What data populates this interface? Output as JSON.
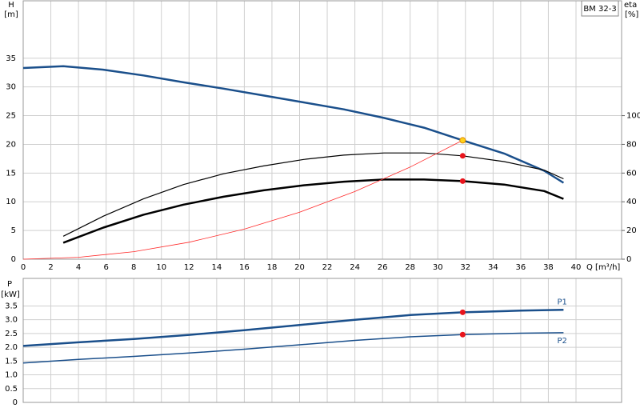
{
  "chart_data": [
    {
      "type": "line",
      "title": "BM 32-3",
      "x_label": "Q [m³/h]",
      "y_label": "H",
      "y_unit": "[m]",
      "y2_label": "eta",
      "y2_unit": "[%]",
      "xlim": [
        0,
        43.3
      ],
      "xticks": [
        0,
        2,
        4,
        6,
        8,
        10,
        12,
        14,
        16,
        18,
        20,
        22,
        24,
        26,
        28,
        30,
        32,
        34,
        36,
        38,
        40
      ],
      "ylim": [
        0,
        45
      ],
      "yticks": [
        0,
        5,
        10,
        15,
        20,
        25,
        30,
        35
      ],
      "y2lim": [
        0,
        180
      ],
      "y2ticks": [
        0,
        20,
        40,
        60,
        80,
        100
      ],
      "grid": true,
      "series": [
        {
          "color": "#1a4f8b",
          "line_width": 2.5,
          "x": [
            0,
            2.9,
            5.8,
            8.7,
            11.6,
            14.5,
            17.4,
            20.3,
            23.2,
            26.1,
            29,
            31.8,
            34.8,
            37.7,
            39.1
          ],
          "values": [
            33.3,
            33.6,
            33.0,
            32.0,
            30.8,
            29.7,
            28.5,
            27.3,
            26.1,
            24.6,
            22.9,
            20.7,
            18.4,
            15.4,
            13.3
          ]
        },
        {
          "color": "#000000",
          "line_width": 1.2,
          "axis": "y2",
          "x": [
            2.9,
            5.8,
            8.7,
            11.6,
            14.5,
            17.4,
            20.3,
            23.2,
            26.1,
            29,
            31.8,
            34.8,
            37.7,
            39.1
          ],
          "values": [
            16,
            30,
            42,
            52,
            59.5,
            65,
            69.5,
            72.5,
            74,
            74,
            72,
            68,
            62,
            56
          ]
        },
        {
          "color": "#000000",
          "line_width": 2.5,
          "axis": "y2",
          "x": [
            2.9,
            5.8,
            8.7,
            11.6,
            14.5,
            17.4,
            20.3,
            23.2,
            26.1,
            29,
            31.8,
            34.8,
            37.7,
            39.1
          ],
          "values": [
            11.5,
            22,
            31,
            38,
            43.5,
            48,
            51.5,
            54,
            55.5,
            55.5,
            54.4,
            52,
            47.5,
            42
          ]
        },
        {
          "color": "#ff2a2a",
          "line_width": 0.8,
          "x": [
            0,
            4,
            8,
            12,
            16,
            20,
            24,
            28,
            31.8
          ],
          "values": [
            0,
            0.33,
            1.31,
            2.95,
            5.24,
            8.19,
            11.79,
            16.05,
            20.7
          ]
        }
      ],
      "points": [
        {
          "x": 31.8,
          "y": 20.7,
          "color": "#ffd21a"
        },
        {
          "x": 31.8,
          "y": 72,
          "axis": "y2",
          "color": "#e8141c"
        },
        {
          "x": 31.8,
          "y": 54.4,
          "axis": "y2",
          "color": "#e8141c"
        }
      ]
    },
    {
      "type": "line",
      "y_label": "P",
      "y_unit": "[kW]",
      "ylim": [
        0,
        4.5
      ],
      "yticks": [
        0,
        0.5,
        {
          "value": 1,
          "label": "1.0"
        },
        1.5,
        {
          "value": 2,
          "label": "2.0"
        },
        2.5,
        {
          "value": 3,
          "label": "3.0"
        },
        3.5
      ],
      "grid": true,
      "series": [
        {
          "name": "P1",
          "color": "#1a4f8b",
          "line_width": 2.5,
          "x": [
            0,
            4,
            8,
            12,
            16,
            20,
            24,
            28,
            31.8,
            36,
            39.1
          ],
          "values": [
            2.05,
            2.18,
            2.3,
            2.45,
            2.62,
            2.81,
            3.0,
            3.17,
            3.27,
            3.33,
            3.36
          ]
        },
        {
          "name": "P2",
          "color": "#1a4f8b",
          "line_width": 1.5,
          "x": [
            0,
            4,
            8,
            12,
            16,
            20,
            24,
            28,
            31.8,
            36,
            39.1
          ],
          "values": [
            1.43,
            1.56,
            1.67,
            1.79,
            1.93,
            2.09,
            2.25,
            2.38,
            2.46,
            2.51,
            2.53
          ]
        }
      ],
      "points": [
        {
          "x": 31.8,
          "y": 3.27,
          "color": "#e8141c"
        },
        {
          "x": 31.8,
          "y": 2.46,
          "color": "#e8141c"
        }
      ]
    }
  ]
}
